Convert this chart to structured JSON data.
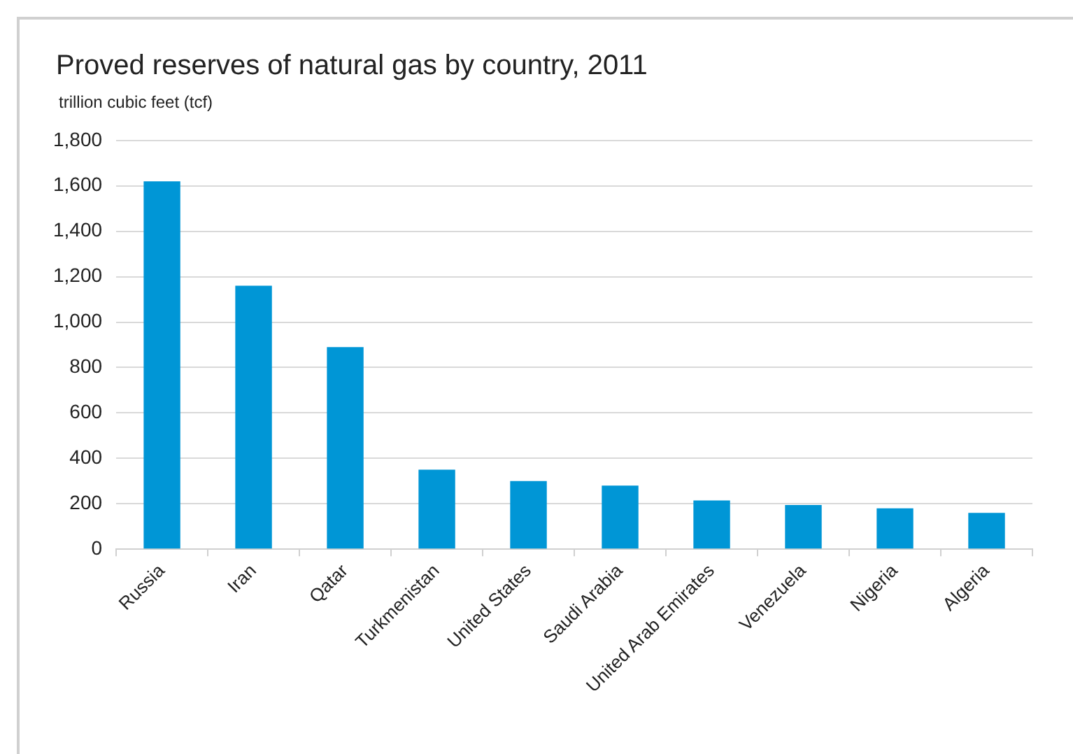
{
  "chart_data": {
    "type": "bar",
    "title": "Proved reserves of natural gas by country, 2011",
    "ylabel": "trillion cubic feet (tcf)",
    "categories": [
      "Russia",
      "Iran",
      "Qatar",
      "Turkmenistan",
      "United States",
      "Saudi Arabia",
      "United Arab Emirates",
      "Venezuela",
      "Nigeria",
      "Algeria"
    ],
    "values": [
      1620,
      1160,
      890,
      350,
      300,
      280,
      215,
      195,
      180,
      160
    ],
    "color": "#0096d6",
    "ylim": [
      0,
      1800
    ],
    "yticks": [
      0,
      200,
      400,
      600,
      800,
      {
        "value": 1000,
        "label": "1,000"
      },
      {
        "value": 1200,
        "label": "1,200"
      },
      {
        "value": 1400,
        "label": "1,400"
      },
      {
        "value": 1600,
        "label": "1,600"
      },
      {
        "value": 1800,
        "label": "1,800"
      }
    ],
    "grid": "y"
  }
}
